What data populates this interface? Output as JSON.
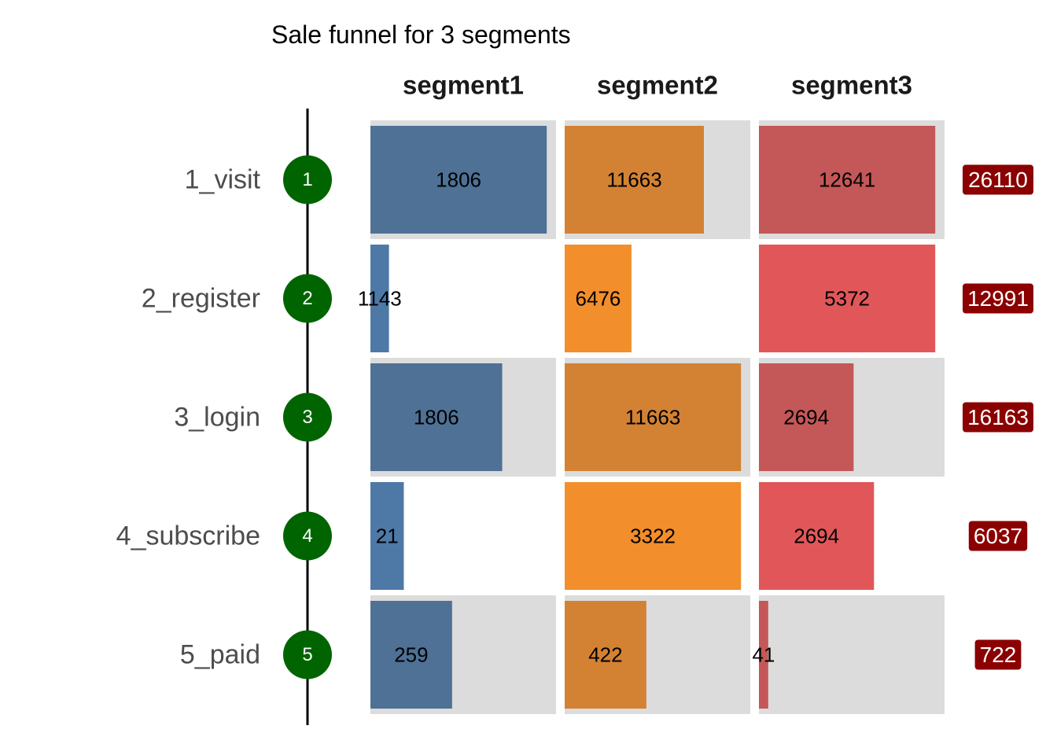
{
  "chart_data": {
    "type": "bar",
    "title": "Sale funnel for 3 segments",
    "stages": [
      "1_visit",
      "2_register",
      "3_login",
      "4_subscribe",
      "5_paid"
    ],
    "step_numbers": [
      "1",
      "2",
      "3",
      "4",
      "5"
    ],
    "segments": [
      "segment1",
      "segment2",
      "segment3"
    ],
    "series": [
      {
        "name": "segment1",
        "values": [
          1806,
          1143,
          1806,
          21,
          259
        ]
      },
      {
        "name": "segment2",
        "values": [
          11663,
          6476,
          11663,
          3322,
          422
        ]
      },
      {
        "name": "segment3",
        "values": [
          12641,
          5372,
          2694,
          2694,
          41
        ]
      }
    ],
    "totals": [
      26110,
      12991,
      16163,
      6037,
      722
    ],
    "bar_fill": [
      0.95,
      0.75,
      0.95,
      0.1,
      0.36,
      0.95,
      0.71,
      0.95,
      0.51,
      0.18,
      0.95,
      0.62,
      0.44,
      0.44,
      0.05
    ],
    "gray_background_rows": [
      0,
      2,
      4
    ],
    "colors": {
      "segment1_dark": "#4e7195",
      "segment1_light": "#4e79a7",
      "segment2_dark": "#d38233",
      "segment2_light": "#f28e2b",
      "segment3_dark": "#c45757",
      "segment3_light": "#e15759",
      "background_gray": "#dcdcdc",
      "step_circle": "#006400",
      "total_badge": "#8b0000"
    }
  }
}
